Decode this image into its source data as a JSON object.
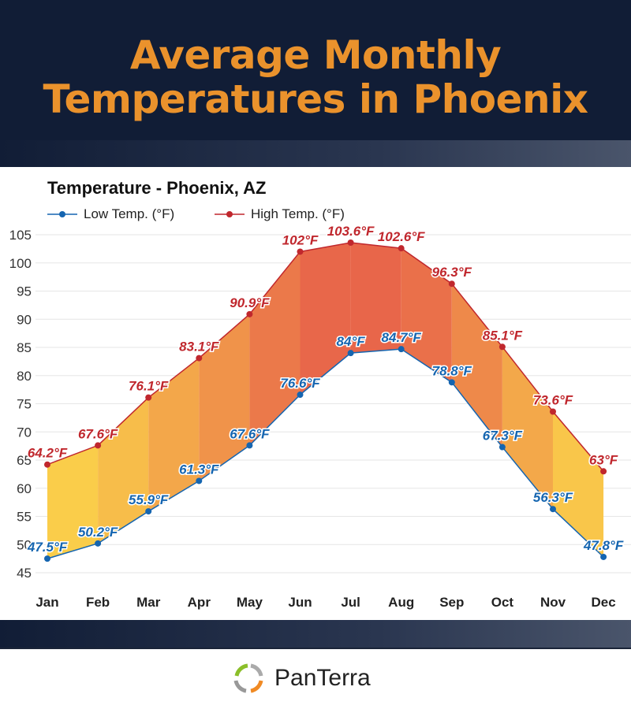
{
  "header": {
    "title_line1": "Average Monthly",
    "title_line2": "Temperatures in Phoenix"
  },
  "brand": {
    "name": "PanTerra"
  },
  "chart_data": {
    "type": "line",
    "title": "Temperature - Phoenix, AZ",
    "categories": [
      "Jan",
      "Feb",
      "Mar",
      "Apr",
      "May",
      "Jun",
      "Jul",
      "Aug",
      "Sep",
      "Oct",
      "Nov",
      "Dec"
    ],
    "series": [
      {
        "name": "Low Temp. (°F)",
        "color": "#1565b0",
        "values": [
          47.5,
          50.2,
          55.9,
          61.3,
          67.6,
          76.6,
          84,
          84.7,
          78.8,
          67.3,
          56.3,
          47.8
        ],
        "labels": [
          "47.5°F",
          "50.2°F",
          "55.9°F",
          "61.3°F",
          "67.6°F",
          "76.6°F",
          "84°F",
          "84.7°F",
          "78.8°F",
          "67.3°F",
          "56.3°F",
          "47.8°F"
        ]
      },
      {
        "name": "High Temp. (°F)",
        "color": "#c0272d",
        "values": [
          64.2,
          67.6,
          76.1,
          83.1,
          90.9,
          102,
          103.6,
          102.6,
          96.3,
          85.1,
          73.6,
          63
        ],
        "labels": [
          "64.2°F",
          "67.6°F",
          "76.1°F",
          "83.1°F",
          "90.9°F",
          "102°F",
          "103.6°F",
          "102.6°F",
          "96.3°F",
          "85.1°F",
          "73.6°F",
          "63°F"
        ]
      }
    ],
    "yticks": [
      "45",
      "50",
      "55",
      "60",
      "65",
      "70",
      "75",
      "80",
      "85",
      "90",
      "95",
      "100",
      "105"
    ],
    "ylim": [
      45,
      105
    ],
    "grid": true,
    "legend": "top-left",
    "fill_colors": {
      "cool": "#fbd54a",
      "hot": "#e8654a"
    }
  }
}
